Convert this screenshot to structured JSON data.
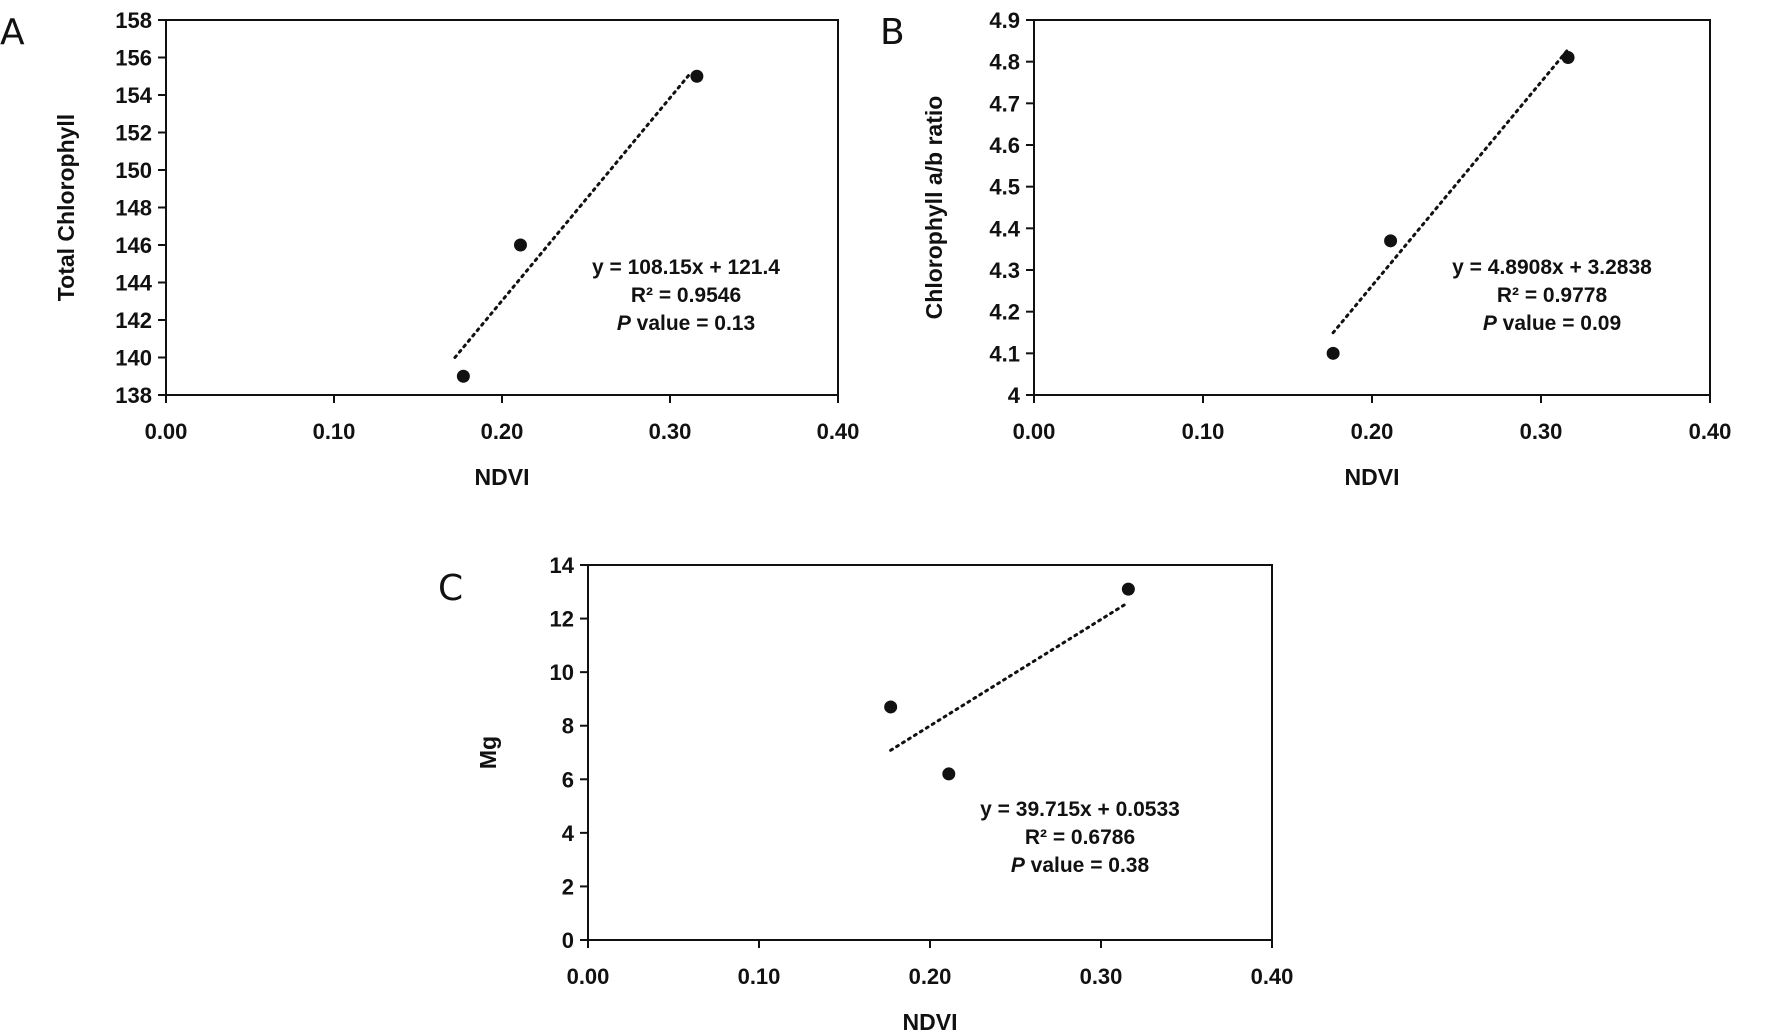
{
  "chart_data": [
    {
      "type": "scatter",
      "panel_label": "A",
      "xlabel": "NDVI",
      "ylabel": "Total Chlorophyll",
      "xlim": [
        0.0,
        0.4
      ],
      "ylim": [
        138,
        158
      ],
      "xticks": [
        "0.00",
        "0.10",
        "0.20",
        "0.30",
        "0.40"
      ],
      "yticks": [
        "138",
        "140",
        "142",
        "144",
        "146",
        "148",
        "150",
        "152",
        "154",
        "156",
        "158"
      ],
      "grid": false,
      "points": [
        {
          "x": 0.177,
          "y": 139.0
        },
        {
          "x": 0.211,
          "y": 146.0
        },
        {
          "x": 0.316,
          "y": 155.0
        }
      ],
      "trendline": {
        "style": "dotted",
        "x_range": [
          0.172,
          0.311
        ],
        "slope": 108.15,
        "intercept": 121.4
      },
      "annotations": {
        "equation": "y = 108.15x + 121.4",
        "r2": "R² = 0.9546",
        "p_label": "P",
        "p_text": " value = 0.13"
      }
    },
    {
      "type": "scatter",
      "panel_label": "B",
      "xlabel": "NDVI",
      "ylabel": "Chlorophyll a/b ratio",
      "xlim": [
        0.0,
        0.4
      ],
      "ylim": [
        4.0,
        4.9
      ],
      "xticks": [
        "0.00",
        "0.10",
        "0.20",
        "0.30",
        "0.40"
      ],
      "yticks": [
        "4",
        "4.1",
        "4.2",
        "4.3",
        "4.4",
        "4.5",
        "4.6",
        "4.7",
        "4.8",
        "4.9"
      ],
      "grid": false,
      "points": [
        {
          "x": 0.177,
          "y": 4.1
        },
        {
          "x": 0.211,
          "y": 4.37
        },
        {
          "x": 0.316,
          "y": 4.81
        }
      ],
      "trendline": {
        "style": "dotted",
        "x_range": [
          0.177,
          0.316
        ],
        "slope": 4.8908,
        "intercept": 3.2838
      },
      "annotations": {
        "equation": "y = 4.8908x + 3.2838",
        "r2": "R² = 0.9778",
        "p_label": "P",
        "p_text": " value = 0.09"
      }
    },
    {
      "type": "scatter",
      "panel_label": "C",
      "xlabel": "NDVI",
      "ylabel": "Mg",
      "xlim": [
        0.0,
        0.4
      ],
      "ylim": [
        0,
        14
      ],
      "xticks": [
        "0.00",
        "0.10",
        "0.20",
        "0.30",
        "0.40"
      ],
      "yticks": [
        "0",
        "2",
        "4",
        "6",
        "8",
        "10",
        "12",
        "14"
      ],
      "grid": false,
      "points": [
        {
          "x": 0.177,
          "y": 8.7
        },
        {
          "x": 0.211,
          "y": 6.2
        },
        {
          "x": 0.316,
          "y": 13.1
        }
      ],
      "trendline": {
        "style": "dotted",
        "x_range": [
          0.177,
          0.316
        ],
        "slope": 39.715,
        "intercept": 0.0533
      },
      "annotations": {
        "equation": "y = 39.715x + 0.0533",
        "r2": "R² = 0.6786",
        "p_label": "P",
        "p_text": " value = 0.38"
      }
    }
  ]
}
